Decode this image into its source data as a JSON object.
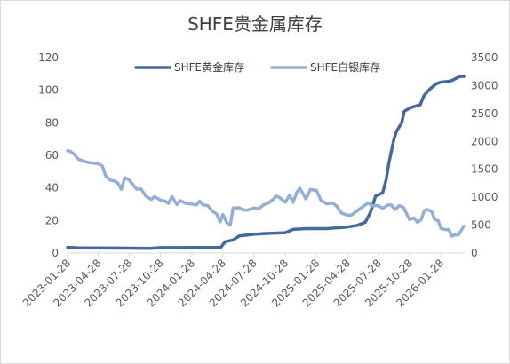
{
  "chart_data": {
    "type": "line",
    "title": "SHFE贵金属库存",
    "xlabel": "",
    "ylabel_left": "",
    "ylabel_right": "",
    "x_range": [
      "2023-01-28",
      "2026-04-05"
    ],
    "ylim_left": [
      0,
      120
    ],
    "ylim_right": [
      0,
      3500
    ],
    "yticks_left": [
      0,
      20,
      40,
      60,
      80,
      100,
      120
    ],
    "yticks_right": [
      0,
      500,
      1000,
      1500,
      2000,
      2500,
      3000,
      3500
    ],
    "xticks": [
      "2023-01-28",
      "2023-04-28",
      "2023-07-28",
      "2023-10-28",
      "2024-01-28",
      "2024-04-28",
      "2024-07-28",
      "2024-10-28",
      "2025-01-28",
      "2025-04-28",
      "2025-07-28",
      "2025-10-28",
      "2026-01-28"
    ],
    "grid": false,
    "legend_position": "top",
    "series": [
      {
        "name": "SHFE黄金库存",
        "axis": "left",
        "color": "#44699e",
        "points": [
          [
            "2023-01-28",
            3.5
          ],
          [
            "2023-02-28",
            3.2
          ],
          [
            "2023-04-28",
            3.1
          ],
          [
            "2023-07-28",
            3.0
          ],
          [
            "2023-09-28",
            2.9
          ],
          [
            "2023-10-28",
            3.3
          ],
          [
            "2023-12-28",
            3.3
          ],
          [
            "2024-01-28",
            3.4
          ],
          [
            "2024-03-28",
            3.4
          ],
          [
            "2024-04-22",
            3.5
          ],
          [
            "2024-05-05",
            7.0
          ],
          [
            "2024-05-28",
            8.0
          ],
          [
            "2024-06-15",
            10.5
          ],
          [
            "2024-07-28",
            11.5
          ],
          [
            "2024-09-01",
            12.0
          ],
          [
            "2024-10-28",
            12.5
          ],
          [
            "2024-11-20",
            14.5
          ],
          [
            "2024-12-28",
            15.0
          ],
          [
            "2025-01-28",
            15.0
          ],
          [
            "2025-02-28",
            15.0
          ],
          [
            "2025-04-28",
            16.0
          ],
          [
            "2025-05-28",
            17.0
          ],
          [
            "2025-06-20",
            19.0
          ],
          [
            "2025-07-05",
            25.0
          ],
          [
            "2025-07-20",
            35.0
          ],
          [
            "2025-08-10",
            37.0
          ],
          [
            "2025-08-20",
            45.0
          ],
          [
            "2025-08-28",
            55.0
          ],
          [
            "2025-09-05",
            63.0
          ],
          [
            "2025-09-12",
            70.0
          ],
          [
            "2025-09-20",
            75.0
          ],
          [
            "2025-10-05",
            80.0
          ],
          [
            "2025-10-12",
            87.0
          ],
          [
            "2025-10-28",
            89.0
          ],
          [
            "2025-11-10",
            90.0
          ],
          [
            "2025-11-28",
            91.0
          ],
          [
            "2025-12-10",
            97.0
          ],
          [
            "2025-12-28",
            101.0
          ],
          [
            "2026-01-15",
            104.0
          ],
          [
            "2026-01-28",
            105.0
          ],
          [
            "2026-02-20",
            105.5
          ],
          [
            "2026-03-01",
            106.0
          ],
          [
            "2026-03-15",
            107.5
          ],
          [
            "2026-03-25",
            108.5
          ],
          [
            "2026-04-05",
            108.5
          ]
        ]
      },
      {
        "name": "SHFE白银库存",
        "axis": "right",
        "color": "#94aed6",
        "points": [
          [
            "2023-01-28",
            1835
          ],
          [
            "2023-02-05",
            1820
          ],
          [
            "2023-02-15",
            1780
          ],
          [
            "2023-03-01",
            1680
          ],
          [
            "2023-03-15",
            1650
          ],
          [
            "2023-04-01",
            1620
          ],
          [
            "2023-04-28",
            1600
          ],
          [
            "2023-05-10",
            1560
          ],
          [
            "2023-05-20",
            1380
          ],
          [
            "2023-06-01",
            1310
          ],
          [
            "2023-06-15",
            1290
          ],
          [
            "2023-06-25",
            1250
          ],
          [
            "2023-07-05",
            1140
          ],
          [
            "2023-07-15",
            1350
          ],
          [
            "2023-07-28",
            1310
          ],
          [
            "2023-08-10",
            1210
          ],
          [
            "2023-08-20",
            1140
          ],
          [
            "2023-09-01",
            1150
          ],
          [
            "2023-09-15",
            1020
          ],
          [
            "2023-10-01",
            960
          ],
          [
            "2023-10-10",
            1010
          ],
          [
            "2023-10-28",
            950
          ],
          [
            "2023-11-10",
            930
          ],
          [
            "2023-11-20",
            890
          ],
          [
            "2023-12-01",
            1010
          ],
          [
            "2023-12-15",
            870
          ],
          [
            "2023-12-25",
            940
          ],
          [
            "2024-01-10",
            890
          ],
          [
            "2024-01-28",
            880
          ],
          [
            "2024-02-10",
            860
          ],
          [
            "2024-02-20",
            930
          ],
          [
            "2024-03-01",
            860
          ],
          [
            "2024-03-15",
            850
          ],
          [
            "2024-03-28",
            750
          ],
          [
            "2024-04-10",
            700
          ],
          [
            "2024-04-20",
            560
          ],
          [
            "2024-04-28",
            690
          ],
          [
            "2024-05-10",
            540
          ],
          [
            "2024-05-20",
            510
          ],
          [
            "2024-05-28",
            810
          ],
          [
            "2024-06-15",
            810
          ],
          [
            "2024-06-28",
            770
          ],
          [
            "2024-07-10",
            770
          ],
          [
            "2024-07-28",
            810
          ],
          [
            "2024-08-10",
            790
          ],
          [
            "2024-08-25",
            860
          ],
          [
            "2024-09-10",
            900
          ],
          [
            "2024-09-20",
            950
          ],
          [
            "2024-10-01",
            1020
          ],
          [
            "2024-10-10",
            1000
          ],
          [
            "2024-10-28",
            910
          ],
          [
            "2024-11-10",
            1040
          ],
          [
            "2024-11-20",
            910
          ],
          [
            "2024-12-01",
            1090
          ],
          [
            "2024-12-10",
            1160
          ],
          [
            "2024-12-28",
            970
          ],
          [
            "2025-01-10",
            1140
          ],
          [
            "2025-01-28",
            1120
          ],
          [
            "2025-02-10",
            940
          ],
          [
            "2025-02-28",
            880
          ],
          [
            "2025-03-15",
            900
          ],
          [
            "2025-03-28",
            840
          ],
          [
            "2025-04-10",
            720
          ],
          [
            "2025-04-28",
            680
          ],
          [
            "2025-05-10",
            680
          ],
          [
            "2025-05-28",
            760
          ],
          [
            "2025-06-15",
            840
          ],
          [
            "2025-06-28",
            900
          ],
          [
            "2025-07-10",
            850
          ],
          [
            "2025-07-28",
            850
          ],
          [
            "2025-08-10",
            800
          ],
          [
            "2025-08-25",
            860
          ],
          [
            "2025-09-05",
            860
          ],
          [
            "2025-09-15",
            780
          ],
          [
            "2025-09-28",
            850
          ],
          [
            "2025-10-10",
            820
          ],
          [
            "2025-10-28",
            600
          ],
          [
            "2025-11-10",
            630
          ],
          [
            "2025-11-20",
            550
          ],
          [
            "2025-12-01",
            600
          ],
          [
            "2025-12-10",
            760
          ],
          [
            "2025-12-20",
            780
          ],
          [
            "2026-01-01",
            740
          ],
          [
            "2026-01-10",
            600
          ],
          [
            "2026-01-20",
            580
          ],
          [
            "2026-01-28",
            440
          ],
          [
            "2026-02-10",
            420
          ],
          [
            "2026-02-20",
            420
          ],
          [
            "2026-03-01",
            300
          ],
          [
            "2026-03-10",
            330
          ],
          [
            "2026-03-20",
            320
          ],
          [
            "2026-04-05",
            480
          ]
        ]
      }
    ]
  }
}
